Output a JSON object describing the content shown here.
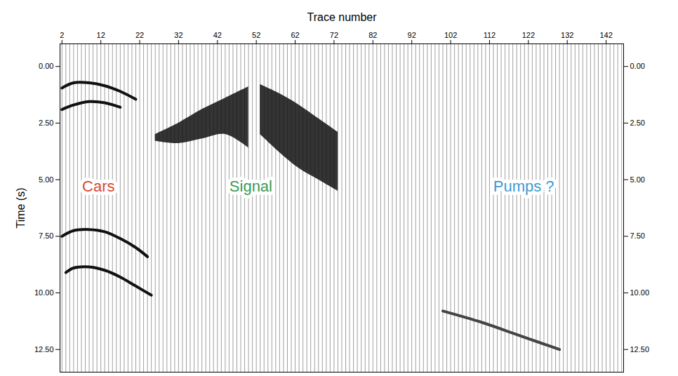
{
  "chart_data": {
    "type": "line",
    "x_label": "Trace number",
    "y_label": "Time (s)",
    "xlim": [
      1.5,
      146.5
    ],
    "ylim": [
      -1.0,
      13.5
    ],
    "xticks": [
      2,
      12,
      22,
      32,
      42,
      52,
      62,
      72,
      82,
      92,
      102,
      112,
      122,
      132,
      142
    ],
    "yticks": [
      {
        "value": 0,
        "label": "0.00"
      },
      {
        "value": 2.5,
        "label": "2.50"
      },
      {
        "value": 5,
        "label": "5.00"
      },
      {
        "value": 7.5,
        "label": "7.50"
      },
      {
        "value": 10,
        "label": "10.00"
      },
      {
        "value": 12.5,
        "label": "12.50"
      }
    ],
    "traces": [
      2,
      3,
      4,
      5,
      6,
      7,
      8,
      9,
      10,
      11,
      12,
      13,
      14,
      15,
      16,
      17,
      18,
      19,
      20,
      21,
      22,
      23,
      24,
      25,
      26,
      27,
      28,
      29,
      30,
      31,
      32,
      33,
      34,
      35,
      36,
      37,
      38,
      39,
      40,
      41,
      42,
      43,
      44,
      45,
      46,
      47,
      48,
      49,
      50,
      51,
      52,
      53,
      54,
      55,
      56,
      57,
      58,
      59,
      60,
      61,
      62,
      63,
      64,
      65,
      66,
      67,
      68,
      69,
      70,
      71,
      72,
      73,
      74,
      75,
      76,
      77,
      78,
      79,
      80,
      81,
      82,
      83,
      84,
      85,
      86,
      87,
      88,
      89,
      90,
      91,
      92,
      93,
      94,
      95,
      96,
      97,
      98,
      99,
      100,
      101,
      102,
      103,
      104,
      105,
      106,
      107,
      108,
      109,
      110,
      111,
      112,
      113,
      114,
      115,
      116,
      117,
      118,
      119,
      120,
      121,
      122,
      123,
      124,
      125,
      126,
      127,
      128,
      129,
      130,
      131,
      132,
      133,
      134,
      135,
      136,
      137,
      138,
      139,
      140,
      141,
      142,
      143,
      144,
      145,
      146
    ],
    "series": [
      {
        "type": "line",
        "color": "#111111",
        "x": [
          2,
          5,
          9,
          13,
          17,
          21
        ],
        "values": [
          0.95,
          0.72,
          0.72,
          0.85,
          1.1,
          1.45
        ]
      },
      {
        "type": "line",
        "color": "#111111",
        "x": [
          2,
          5,
          9,
          13,
          17
        ],
        "values": [
          1.9,
          1.7,
          1.55,
          1.6,
          1.8
        ]
      },
      {
        "type": "line",
        "color": "#111111",
        "x": [
          2,
          5,
          9,
          13,
          17,
          21,
          24
        ],
        "values": [
          7.5,
          7.25,
          7.2,
          7.3,
          7.6,
          8.0,
          8.4
        ]
      },
      {
        "type": "line",
        "color": "#111111",
        "x": [
          3,
          5,
          9,
          13,
          17,
          21,
          25
        ],
        "values": [
          9.1,
          8.9,
          8.85,
          9.0,
          9.3,
          9.7,
          10.1
        ]
      },
      {
        "type": "area",
        "color": "#111111",
        "x": [
          26,
          32,
          38,
          44,
          50
        ],
        "y1": [
          3.0,
          2.5,
          1.9,
          1.4,
          0.9
        ],
        "y2": [
          3.3,
          3.4,
          3.2,
          3.0,
          3.6
        ]
      },
      {
        "type": "area",
        "color": "#111111",
        "x": [
          53,
          58,
          63,
          68,
          73
        ],
        "y1": [
          0.8,
          1.2,
          1.7,
          2.3,
          2.9
        ],
        "y2": [
          3.0,
          3.8,
          4.5,
          5.0,
          5.5
        ]
      },
      {
        "type": "line",
        "color": "#444444",
        "x": [
          100,
          110,
          120,
          130
        ],
        "values": [
          10.8,
          11.3,
          11.9,
          12.5
        ]
      }
    ],
    "annotations": [
      {
        "text": "Cars",
        "x": 11.4,
        "y": 5.3,
        "color": "#d9472f"
      },
      {
        "text": "Signal",
        "x": 50.6,
        "y": 5.3,
        "color": "#3a9a55"
      },
      {
        "text": "Pumps ?",
        "x": 120.8,
        "y": 5.3,
        "color": "#3d9ad6"
      }
    ]
  }
}
